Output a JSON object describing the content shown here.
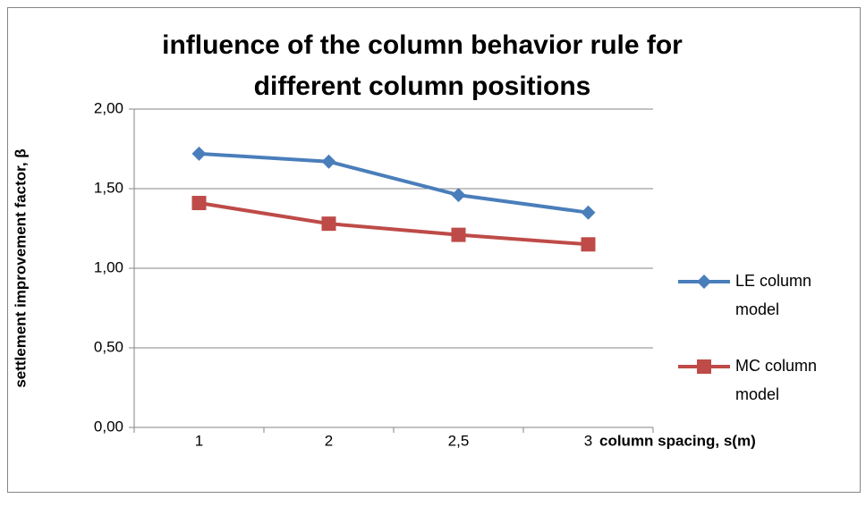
{
  "chart_data": {
    "type": "line",
    "title": [
      "influence of the column behavior rule for",
      "different  column positions"
    ],
    "y_label": "settlement improvement factor, β",
    "x_label": "column spacing, s(m)",
    "categories": [
      "1",
      "2",
      "2,5",
      "3"
    ],
    "series": [
      {
        "name": "LE column model",
        "color": "#4a7ebb",
        "marker": "diamond",
        "values": [
          1.72,
          1.67,
          1.46,
          1.35
        ]
      },
      {
        "name": "MC column model",
        "color": "#be4b48",
        "marker": "square",
        "values": [
          1.41,
          1.28,
          1.21,
          1.15
        ]
      }
    ],
    "ylim": [
      0,
      2
    ],
    "yticks": [
      {
        "value": 0,
        "label": "0,00"
      },
      {
        "value": 0.5,
        "label": "0,50"
      },
      {
        "value": 1,
        "label": "1,00"
      },
      {
        "value": 1.5,
        "label": "1,50"
      },
      {
        "value": 2,
        "label": "2,00"
      }
    ],
    "grid": true,
    "legend": "right"
  }
}
